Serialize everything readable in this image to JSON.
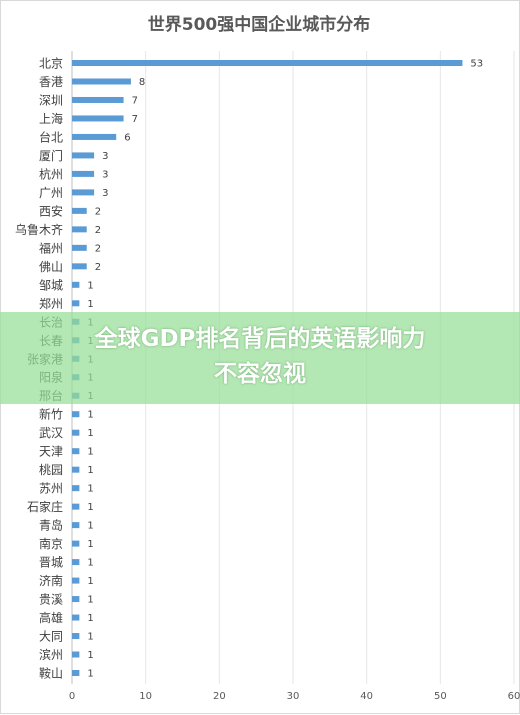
{
  "chart_data": {
    "type": "bar",
    "orientation": "horizontal",
    "title": "世界500强中国企业城市分布",
    "categories": [
      "北京",
      "香港",
      "深圳",
      "上海",
      "台北",
      "厦门",
      "杭州",
      "广州",
      "西安",
      "乌鲁木齐",
      "福州",
      "佛山",
      "邹城",
      "郑州",
      "长治",
      "长春",
      "张家港",
      "阳泉",
      "邢台",
      "新竹",
      "武汉",
      "天津",
      "桃园",
      "苏州",
      "石家庄",
      "青岛",
      "南京",
      "晋城",
      "济南",
      "贵溪",
      "高雄",
      "大同",
      "滨州",
      "鞍山"
    ],
    "values": [
      53,
      8,
      7,
      7,
      6,
      3,
      3,
      3,
      2,
      2,
      2,
      2,
      1,
      1,
      1,
      1,
      1,
      1,
      1,
      1,
      1,
      1,
      1,
      1,
      1,
      1,
      1,
      1,
      1,
      1,
      1,
      1,
      1,
      1
    ],
    "xlim": [
      0,
      60
    ],
    "xticks": [
      0,
      10,
      20,
      30,
      40,
      50,
      60
    ],
    "data_labels": true,
    "grid": true,
    "bar_color": "#5b9bd5"
  },
  "overlay": {
    "text": "全球GDP排名背后的英语影响力\n不容忽视",
    "banner_color": "#96de96"
  }
}
